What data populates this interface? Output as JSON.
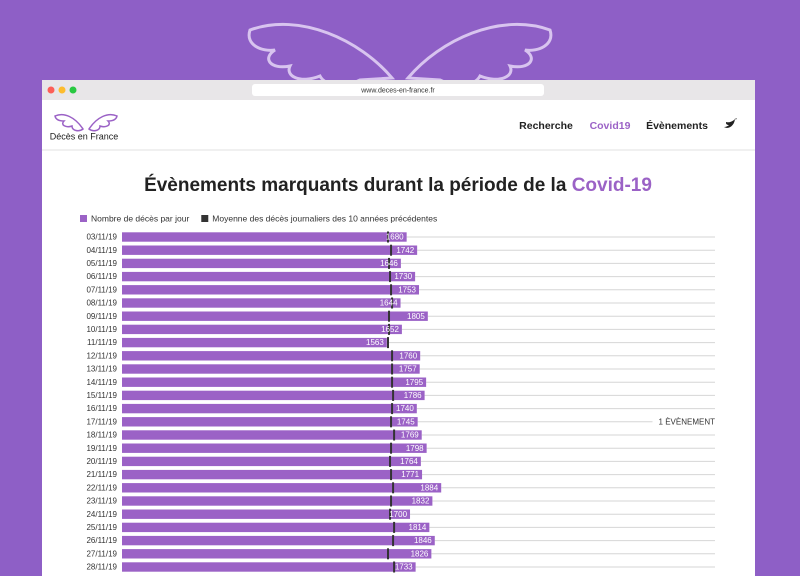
{
  "browser": {
    "url": "www.deces-en-france.fr"
  },
  "site": {
    "logo_text": "Décès en France",
    "nav": [
      "Recherche",
      "Covid19",
      "Évènements"
    ],
    "active_nav_index": 1
  },
  "chart_data": {
    "type": "bar",
    "orientation": "horizontal",
    "title_parts": [
      "Évènements marquants durant la période de la",
      "Covid-19"
    ],
    "categories": [
      "03/11/19",
      "04/11/19",
      "05/11/19",
      "06/11/19",
      "07/11/19",
      "08/11/19",
      "09/11/19",
      "10/11/19",
      "11/11/19",
      "12/11/19",
      "13/11/19",
      "14/11/19",
      "15/11/19",
      "16/11/19",
      "17/11/19",
      "18/11/19",
      "19/11/19",
      "20/11/19",
      "21/11/19",
      "22/11/19",
      "23/11/19",
      "24/11/19",
      "25/11/19",
      "26/11/19",
      "27/11/19",
      "28/11/19"
    ],
    "series": [
      {
        "name": "Nombre de décès par jour",
        "color": "#9b62c6",
        "style": "bar",
        "values": [
          1680,
          1742,
          1646,
          1730,
          1753,
          1644,
          1805,
          1652,
          1563,
          1760,
          1757,
          1795,
          1786,
          1740,
          1745,
          1769,
          1798,
          1764,
          1771,
          1884,
          1832,
          1700,
          1814,
          1846,
          1826,
          1733
        ]
      },
      {
        "name": "Moyenne des décès journaliers des 10 années précédentes",
        "color": "#333333",
        "style": "marker",
        "values": [
          1570,
          1588,
          1576,
          1582,
          1588,
          1594,
          1576,
          1576,
          1570,
          1594,
          1594,
          1594,
          1600,
          1594,
          1588,
          1606,
          1588,
          1582,
          1588,
          1600,
          1588,
          1582,
          1606,
          1600,
          1570,
          1606
        ]
      }
    ],
    "xlim": [
      0,
      3500
    ],
    "annotations": [
      {
        "category": "17/11/19",
        "text": "1 ÈVÈNEMENT"
      }
    ]
  }
}
